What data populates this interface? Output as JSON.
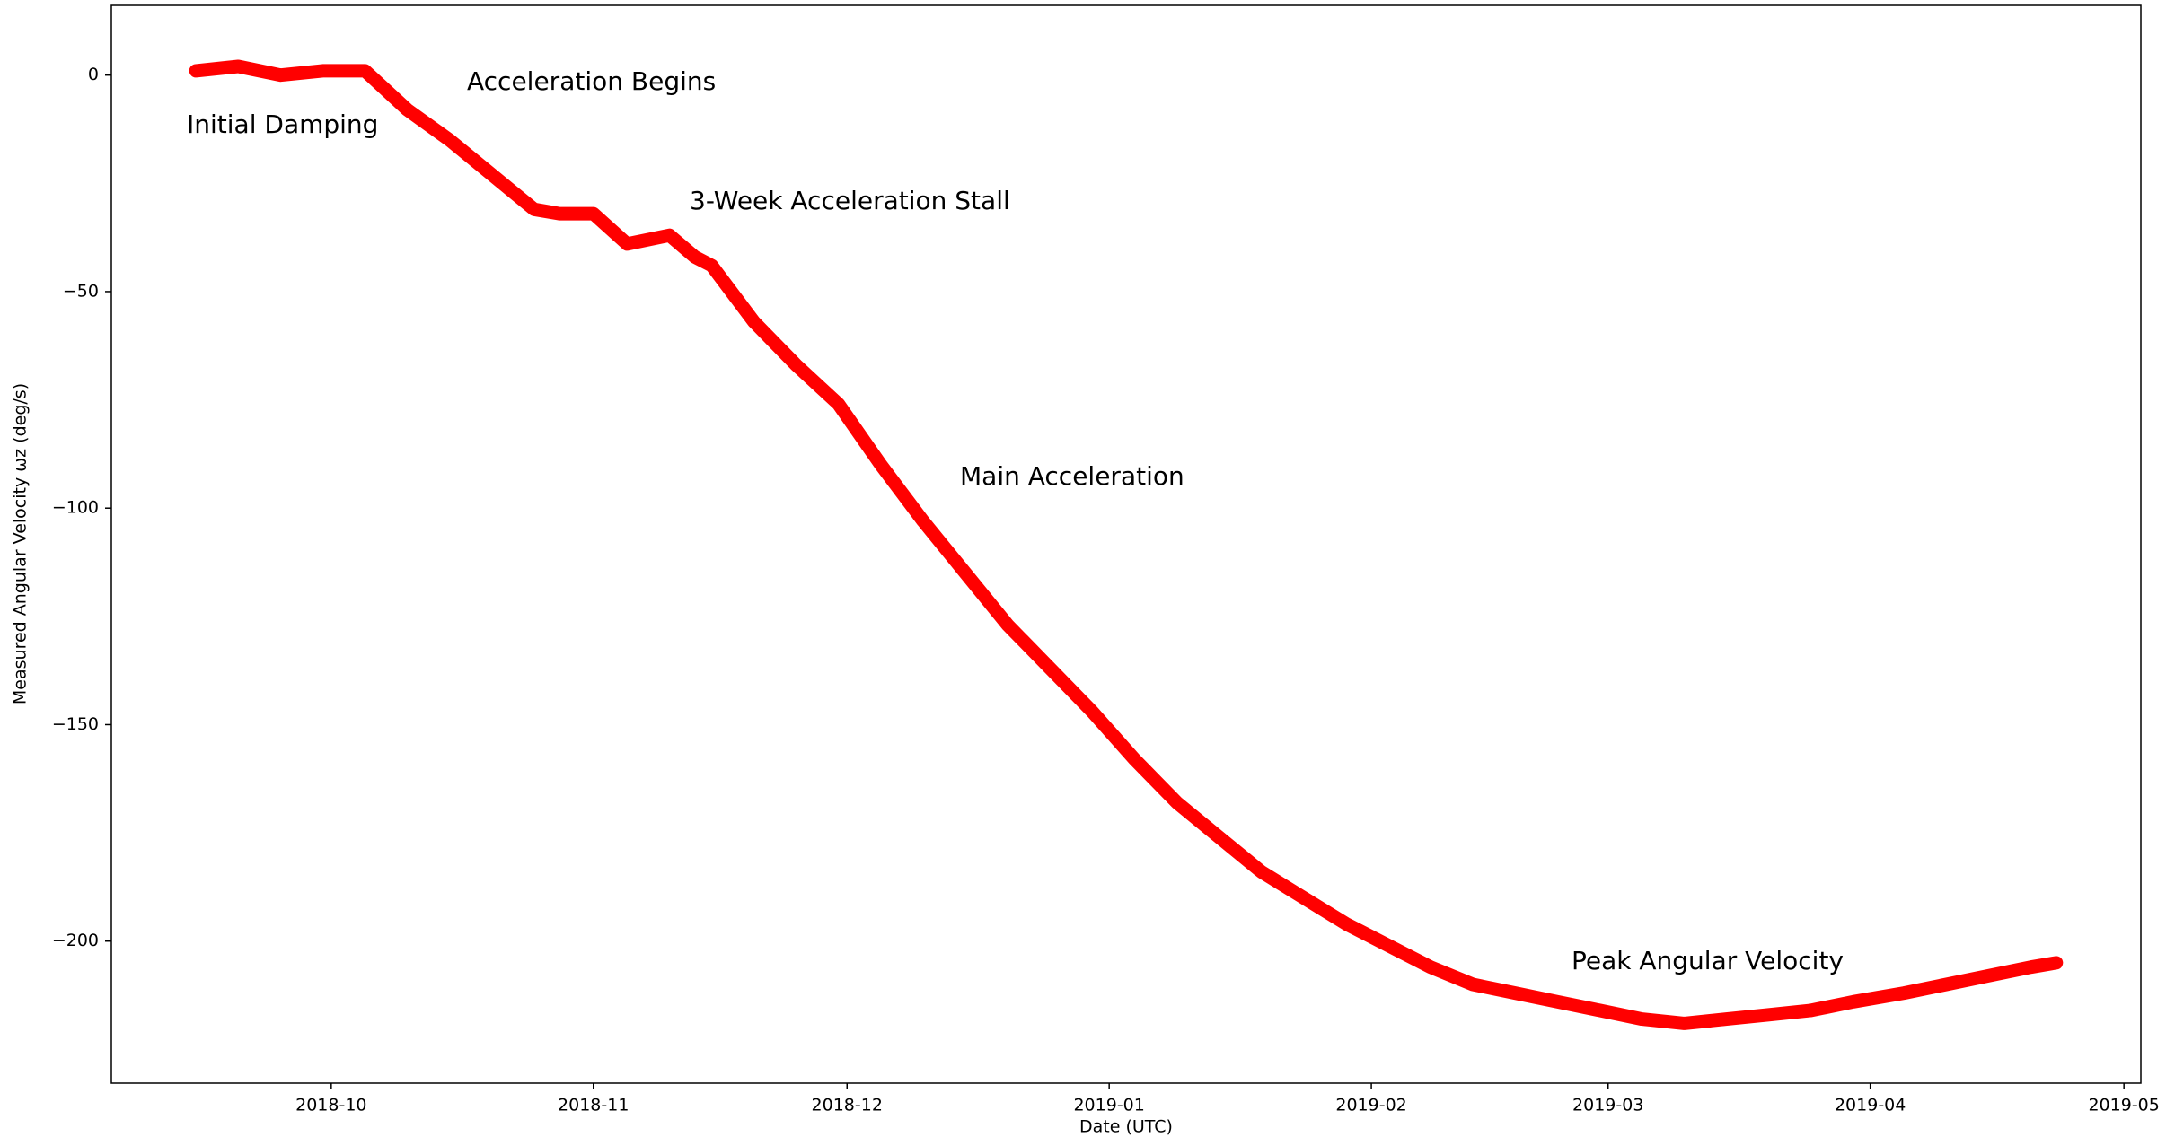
{
  "chart_data": {
    "type": "line",
    "x_label": "Date (UTC)",
    "y_label": "Measured Angular Velocity ωz (deg/s)",
    "annotations": [
      "Initial Damping",
      "Acceleration Begins",
      "3-Week Acceleration Stall",
      "Main Acceleration",
      "Peak Angular Velocity"
    ],
    "xlim": [
      "2018-09-05",
      "2019-05-03"
    ],
    "xticks": [
      "2018-10",
      "2018-11",
      "2018-12",
      "2019-01",
      "2019-02",
      "2019-03",
      "2019-04",
      "2019-05"
    ],
    "ylim": [
      -232.8,
      16.1
    ],
    "yticks": [
      {
        "value": -200,
        "label": "−200"
      },
      {
        "value": -150,
        "label": "−150"
      },
      {
        "value": -100,
        "label": "−100"
      },
      {
        "value": -50,
        "label": "−50"
      },
      0
    ],
    "series": [
      {
        "color": "#ff0000",
        "x": [
          "2018-09-15",
          "2018-09-20",
          "2018-09-25",
          "2018-09-30",
          "2018-10-05",
          "2018-10-10",
          "2018-10-15",
          "2018-10-20",
          "2018-10-25",
          "2018-10-28",
          "2018-11-01",
          "2018-11-05",
          "2018-11-10",
          "2018-11-13",
          "2018-11-15",
          "2018-11-20",
          "2018-11-25",
          "2018-11-30",
          "2018-12-05",
          "2018-12-10",
          "2018-12-15",
          "2018-12-20",
          "2018-12-25",
          "2018-12-30",
          "2019-01-04",
          "2019-01-09",
          "2019-01-14",
          "2019-01-19",
          "2019-01-24",
          "2019-01-29",
          "2019-02-03",
          "2019-02-08",
          "2019-02-13",
          "2019-02-18",
          "2019-02-23",
          "2019-02-28",
          "2019-03-05",
          "2019-03-10",
          "2019-03-15",
          "2019-03-20",
          "2019-03-25",
          "2019-03-30",
          "2019-04-05",
          "2019-04-10",
          "2019-04-15",
          "2019-04-20",
          "2019-04-23"
        ],
        "values": [
          1,
          2,
          0,
          1,
          1,
          -8,
          -15,
          -23,
          -31,
          -32,
          -32,
          -39,
          -37,
          -42,
          -44,
          -57,
          -67,
          -76,
          -90,
          -103,
          -115,
          -127,
          -137,
          -147,
          -158,
          -168,
          -176,
          -184,
          -190,
          -196,
          -201,
          -206,
          -210,
          -212,
          -214,
          -216,
          -218,
          -219,
          -218,
          -217,
          -216,
          -214,
          -212,
          -210,
          -208,
          -206,
          -205
        ]
      }
    ]
  }
}
